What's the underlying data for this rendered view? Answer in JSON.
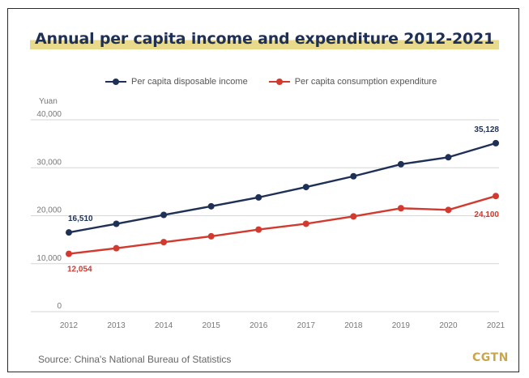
{
  "title": "Annual per capita income and expenditure 2012-2021",
  "source": "Source: China's National Bureau of Statistics",
  "brand": "CGTN",
  "legend": [
    {
      "label": "Per capita disposable income",
      "color": "#1f3057"
    },
    {
      "label": "Per capita consumption expenditure",
      "color": "#d23a2f"
    }
  ],
  "colors": {
    "income": "#1f3057",
    "expenditure": "#d23a2f",
    "grid": "#d6d6d6",
    "axis_text": "#777777",
    "title_highlight": "#e9d98a",
    "brand": "#c9a64a"
  },
  "chart_data": {
    "type": "line",
    "title": "Annual per capita income and expenditure 2012-2021",
    "ylabel": "Yuan",
    "xlabel": "",
    "x": [
      "2012",
      "2013",
      "2014",
      "2015",
      "2016",
      "2017",
      "2018",
      "2019",
      "2020",
      "2021"
    ],
    "ylim": [
      0,
      40000
    ],
    "yticks": [
      0,
      10000,
      20000,
      30000,
      40000
    ],
    "ytick_labels": [
      "0",
      "10,000",
      "20,000",
      "30,000",
      "40,000"
    ],
    "grid": true,
    "legend_position": "top",
    "series": [
      {
        "name": "Per capita disposable income",
        "color": "#1f3057",
        "values": [
          16510,
          18311,
          20167,
          21966,
          23821,
          25974,
          28228,
          30733,
          32189,
          35128
        ]
      },
      {
        "name": "Per capita consumption expenditure",
        "color": "#d23a2f",
        "values": [
          12054,
          13220,
          14491,
          15712,
          17111,
          18322,
          19853,
          21559,
          21210,
          24100
        ]
      }
    ],
    "annotations": [
      {
        "series": 0,
        "index": 0,
        "text": "16,510"
      },
      {
        "series": 0,
        "index": 9,
        "text": "35,128"
      },
      {
        "series": 1,
        "index": 0,
        "text": "12,054"
      },
      {
        "series": 1,
        "index": 9,
        "text": "24,100"
      }
    ]
  }
}
